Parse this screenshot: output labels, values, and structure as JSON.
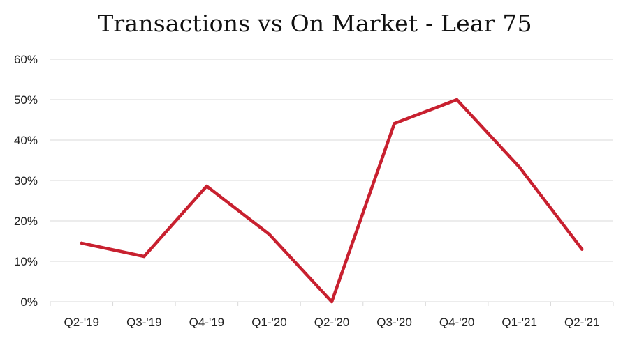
{
  "chart_data": {
    "type": "line",
    "title": "Transactions vs On Market - Lear 75",
    "categories": [
      "Q2-'19",
      "Q3-'19",
      "Q4-'19",
      "Q1-'20",
      "Q2-'20",
      "Q3-'20",
      "Q4-'20",
      "Q1-'21",
      "Q2-'21"
    ],
    "series": [
      {
        "values": [
          14.5,
          11.2,
          28.6,
          16.7,
          0,
          44.1,
          50.0,
          33.3,
          13.0
        ]
      }
    ],
    "y_ticks": [
      "0%",
      "10%",
      "20%",
      "30%",
      "40%",
      "50%",
      "60%"
    ],
    "ylim": [
      0,
      60
    ],
    "grid": true,
    "line_color": "#c8202f",
    "grid_color": "#d9d9d9"
  }
}
